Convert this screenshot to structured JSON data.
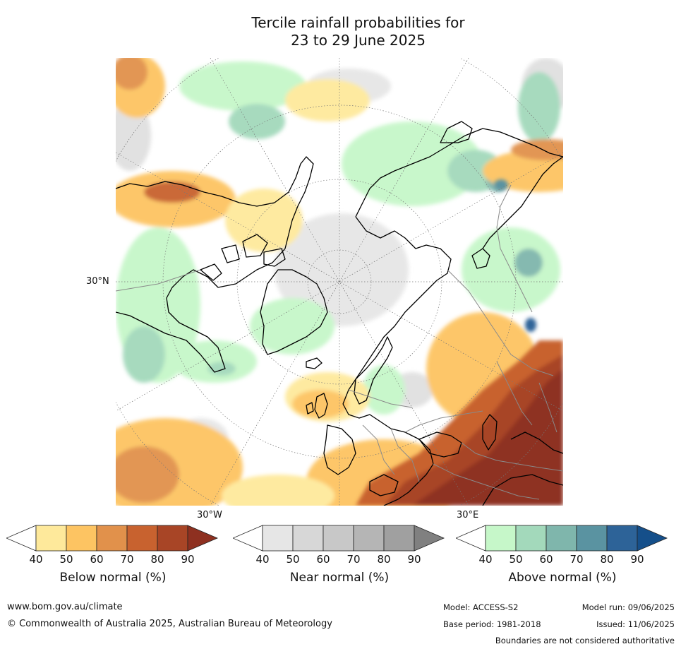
{
  "title_line1": "Tercile rainfall probabilities for",
  "title_line2": "23 to 29 June 2025",
  "map": {
    "lat_label": "30°N",
    "lon_labels": [
      "30°W",
      "30°E"
    ]
  },
  "colorbars": [
    {
      "title": "Below normal (%)",
      "ticks": [
        "40",
        "50",
        "60",
        "70",
        "80",
        "90"
      ],
      "colors": [
        "#ffffff",
        "#fee99b",
        "#fdc462",
        "#e1914b",
        "#c8622f",
        "#a84526",
        "#8e3020"
      ]
    },
    {
      "title": "Near normal (%)",
      "ticks": [
        "40",
        "50",
        "60",
        "70",
        "80",
        "90"
      ],
      "colors": [
        "#ffffff",
        "#e6e6e6",
        "#d7d7d7",
        "#c8c8c8",
        "#b5b5b5",
        "#a0a0a0",
        "#808080"
      ]
    },
    {
      "title": "Above normal (%)",
      "ticks": [
        "40",
        "50",
        "60",
        "70",
        "80",
        "90"
      ],
      "colors": [
        "#ffffff",
        "#c6f7c9",
        "#a3d9bb",
        "#7fb6ac",
        "#5a93a1",
        "#2d6398",
        "#154f8a"
      ]
    }
  ],
  "footer": {
    "website": "www.bom.gov.au/climate",
    "copyright": "© Commonwealth of Australia 2025, Australian Bureau of Meteorology",
    "model": "Model: ACCESS-S2",
    "model_run": "Model run: 09/06/2025",
    "base_period": "Base period: 1981-2018",
    "issued": "Issued: 11/06/2025",
    "disclaimer": "Boundaries are not considered authoritative"
  }
}
